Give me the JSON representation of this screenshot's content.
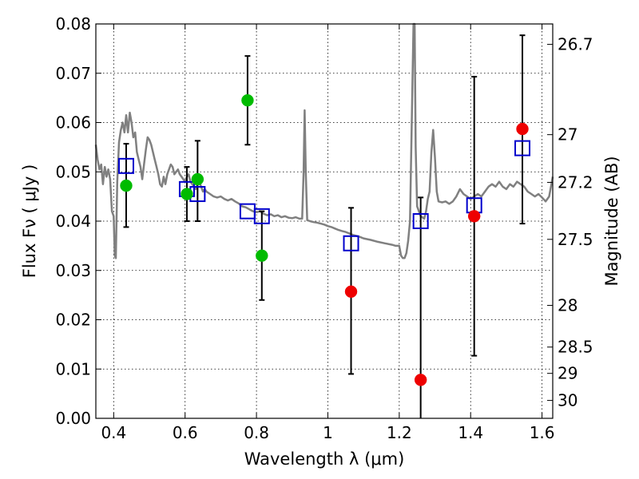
{
  "chart_data": {
    "type": "scatter",
    "xlabel": "Wavelength  λ (μm)",
    "ylabel": "Flux  Fν  ( μJy )",
    "ylabel_right": "Magnitude (AB)",
    "xlim": [
      0.35,
      1.63
    ],
    "ylim": [
      0.0,
      0.08
    ],
    "grid": true,
    "x_ticks": [
      0.4,
      0.6,
      0.8,
      1.0,
      1.2,
      1.4,
      1.6
    ],
    "x_tick_labels": [
      "0.4",
      "0.6",
      "0.8",
      "1",
      "1.2",
      "1.4",
      "1.6"
    ],
    "y_ticks": [
      0.0,
      0.01,
      0.02,
      0.03,
      0.04,
      0.05,
      0.06,
      0.07,
      0.08
    ],
    "y_tick_labels": [
      "0.00",
      "0.01",
      "0.02",
      "0.03",
      "0.04",
      "0.05",
      "0.06",
      "0.07",
      "0.08"
    ],
    "right_ticks": [
      {
        "mag": 26.7,
        "label": "26.7"
      },
      {
        "mag": 27.0,
        "label": "27"
      },
      {
        "mag": 27.2,
        "label": "27.2"
      },
      {
        "mag": 27.5,
        "label": "27.5"
      },
      {
        "mag": 28.0,
        "label": "28"
      },
      {
        "mag": 28.5,
        "label": "28.5"
      },
      {
        "mag": 29.0,
        "label": "29"
      },
      {
        "mag": 30.0,
        "label": "30"
      }
    ],
    "colors": {
      "model": "#808080",
      "model_points": "#0000cc",
      "detections": "#00bb00",
      "upper_limits": "#ee0000",
      "errorbars": "#000000"
    },
    "series": [
      {
        "kind": "line",
        "role": "model",
        "points": [
          [
            0.35,
            0.0555
          ],
          [
            0.355,
            0.0525
          ],
          [
            0.36,
            0.0505
          ],
          [
            0.365,
            0.0515
          ],
          [
            0.37,
            0.0475
          ],
          [
            0.375,
            0.051
          ],
          [
            0.38,
            0.049
          ],
          [
            0.385,
            0.0505
          ],
          [
            0.39,
            0.0485
          ],
          [
            0.395,
            0.042
          ],
          [
            0.4,
            0.041
          ],
          [
            0.403,
            0.033
          ],
          [
            0.406,
            0.0325
          ],
          [
            0.41,
            0.048
          ],
          [
            0.415,
            0.056
          ],
          [
            0.42,
            0.0585
          ],
          [
            0.425,
            0.06
          ],
          [
            0.43,
            0.058
          ],
          [
            0.435,
            0.0615
          ],
          [
            0.44,
            0.058
          ],
          [
            0.445,
            0.062
          ],
          [
            0.45,
            0.06
          ],
          [
            0.455,
            0.057
          ],
          [
            0.46,
            0.058
          ],
          [
            0.465,
            0.054
          ],
          [
            0.47,
            0.0525
          ],
          [
            0.475,
            0.051
          ],
          [
            0.48,
            0.0485
          ],
          [
            0.485,
            0.0515
          ],
          [
            0.49,
            0.0545
          ],
          [
            0.495,
            0.057
          ],
          [
            0.5,
            0.0565
          ],
          [
            0.505,
            0.0555
          ],
          [
            0.51,
            0.054
          ],
          [
            0.515,
            0.0525
          ],
          [
            0.52,
            0.051
          ],
          [
            0.525,
            0.0495
          ],
          [
            0.53,
            0.0475
          ],
          [
            0.535,
            0.047
          ],
          [
            0.54,
            0.049
          ],
          [
            0.545,
            0.0475
          ],
          [
            0.55,
            0.0495
          ],
          [
            0.555,
            0.0505
          ],
          [
            0.56,
            0.0515
          ],
          [
            0.565,
            0.051
          ],
          [
            0.57,
            0.0495
          ],
          [
            0.575,
            0.05
          ],
          [
            0.58,
            0.0505
          ],
          [
            0.585,
            0.0495
          ],
          [
            0.59,
            0.049
          ],
          [
            0.595,
            0.0485
          ],
          [
            0.6,
            0.048
          ],
          [
            0.605,
            0.049
          ],
          [
            0.61,
            0.0495
          ],
          [
            0.615,
            0.048
          ],
          [
            0.62,
            0.0475
          ],
          [
            0.625,
            0.047
          ],
          [
            0.63,
            0.0465
          ],
          [
            0.635,
            0.0475
          ],
          [
            0.64,
            0.048
          ],
          [
            0.645,
            0.047
          ],
          [
            0.65,
            0.046
          ],
          [
            0.655,
            0.0465
          ],
          [
            0.66,
            0.046
          ],
          [
            0.67,
            0.0455
          ],
          [
            0.68,
            0.045
          ],
          [
            0.69,
            0.0448
          ],
          [
            0.7,
            0.045
          ],
          [
            0.71,
            0.0445
          ],
          [
            0.72,
            0.0442
          ],
          [
            0.73,
            0.0445
          ],
          [
            0.74,
            0.044
          ],
          [
            0.75,
            0.0436
          ],
          [
            0.76,
            0.043
          ],
          [
            0.77,
            0.0428
          ],
          [
            0.78,
            0.0424
          ],
          [
            0.79,
            0.042
          ],
          [
            0.8,
            0.0418
          ],
          [
            0.81,
            0.042
          ],
          [
            0.82,
            0.0415
          ],
          [
            0.83,
            0.0412
          ],
          [
            0.84,
            0.0414
          ],
          [
            0.85,
            0.041
          ],
          [
            0.86,
            0.0412
          ],
          [
            0.87,
            0.0408
          ],
          [
            0.88,
            0.041
          ],
          [
            0.89,
            0.0407
          ],
          [
            0.9,
            0.0406
          ],
          [
            0.91,
            0.0408
          ],
          [
            0.92,
            0.0405
          ],
          [
            0.928,
            0.0405
          ],
          [
            0.932,
            0.05
          ],
          [
            0.935,
            0.0625
          ],
          [
            0.938,
            0.05
          ],
          [
            0.942,
            0.0402
          ],
          [
            0.95,
            0.04
          ],
          [
            0.96,
            0.0398
          ],
          [
            0.97,
            0.0397
          ],
          [
            0.98,
            0.0395
          ],
          [
            0.99,
            0.0393
          ],
          [
            1.0,
            0.039
          ],
          [
            1.01,
            0.0388
          ],
          [
            1.02,
            0.0385
          ],
          [
            1.03,
            0.0382
          ],
          [
            1.04,
            0.038
          ],
          [
            1.05,
            0.0378
          ],
          [
            1.06,
            0.0375
          ],
          [
            1.07,
            0.0372
          ],
          [
            1.08,
            0.037
          ],
          [
            1.09,
            0.0368
          ],
          [
            1.1,
            0.0365
          ],
          [
            1.12,
            0.0362
          ],
          [
            1.14,
            0.0358
          ],
          [
            1.16,
            0.0355
          ],
          [
            1.18,
            0.0352
          ],
          [
            1.19,
            0.035
          ],
          [
            1.2,
            0.035
          ],
          [
            1.205,
            0.033
          ],
          [
            1.21,
            0.0325
          ],
          [
            1.215,
            0.0325
          ],
          [
            1.22,
            0.0335
          ],
          [
            1.225,
            0.036
          ],
          [
            1.23,
            0.04
          ],
          [
            1.235,
            0.06
          ],
          [
            1.24,
            0.08
          ],
          [
            1.243,
            0.08
          ],
          [
            1.246,
            0.055
          ],
          [
            1.25,
            0.043
          ],
          [
            1.26,
            0.041
          ],
          [
            1.27,
            0.0405
          ],
          [
            1.275,
            0.042
          ],
          [
            1.28,
            0.0445
          ],
          [
            1.285,
            0.046
          ],
          [
            1.29,
            0.054
          ],
          [
            1.295,
            0.0585
          ],
          [
            1.3,
            0.053
          ],
          [
            1.305,
            0.046
          ],
          [
            1.31,
            0.044
          ],
          [
            1.32,
            0.0438
          ],
          [
            1.33,
            0.044
          ],
          [
            1.34,
            0.0435
          ],
          [
            1.35,
            0.044
          ],
          [
            1.36,
            0.045
          ],
          [
            1.37,
            0.0465
          ],
          [
            1.38,
            0.0455
          ],
          [
            1.39,
            0.045
          ],
          [
            1.4,
            0.0445
          ],
          [
            1.41,
            0.045
          ],
          [
            1.42,
            0.0455
          ],
          [
            1.43,
            0.045
          ],
          [
            1.44,
            0.046
          ],
          [
            1.45,
            0.047
          ],
          [
            1.46,
            0.0475
          ],
          [
            1.47,
            0.047
          ],
          [
            1.48,
            0.048
          ],
          [
            1.49,
            0.047
          ],
          [
            1.5,
            0.0465
          ],
          [
            1.51,
            0.0475
          ],
          [
            1.52,
            0.047
          ],
          [
            1.53,
            0.048
          ],
          [
            1.54,
            0.0475
          ],
          [
            1.55,
            0.047
          ],
          [
            1.56,
            0.046
          ],
          [
            1.57,
            0.0455
          ],
          [
            1.58,
            0.045
          ],
          [
            1.59,
            0.0455
          ],
          [
            1.6,
            0.0448
          ],
          [
            1.61,
            0.044
          ],
          [
            1.62,
            0.045
          ],
          [
            1.625,
            0.047
          ],
          [
            1.63,
            0.049
          ]
        ]
      },
      {
        "kind": "squares",
        "role": "model_points",
        "points": [
          [
            0.435,
            0.0512
          ],
          [
            0.605,
            0.0465
          ],
          [
            0.635,
            0.0455
          ],
          [
            0.775,
            0.042
          ],
          [
            0.815,
            0.041
          ],
          [
            1.065,
            0.0355
          ],
          [
            1.26,
            0.04
          ],
          [
            1.41,
            0.0432
          ],
          [
            1.545,
            0.0548
          ]
        ]
      },
      {
        "kind": "circles",
        "role": "detections",
        "points": [
          [
            0.435,
            0.0472
          ],
          [
            0.605,
            0.0455
          ],
          [
            0.635,
            0.0485
          ],
          [
            0.775,
            0.0645
          ],
          [
            0.815,
            0.033
          ]
        ]
      },
      {
        "kind": "circles",
        "role": "upper_limits",
        "points": [
          [
            1.065,
            0.0257
          ],
          [
            1.26,
            0.0078
          ],
          [
            1.41,
            0.041
          ],
          [
            1.545,
            0.0587
          ]
        ]
      },
      {
        "kind": "errorbars",
        "role": "errorbars",
        "points": [
          {
            "x": 0.435,
            "low": 0.0388,
            "high": 0.0557
          },
          {
            "x": 0.605,
            "low": 0.04,
            "high": 0.051
          },
          {
            "x": 0.635,
            "low": 0.04,
            "high": 0.0563
          },
          {
            "x": 0.775,
            "low": 0.0555,
            "high": 0.0735
          },
          {
            "x": 0.815,
            "low": 0.024,
            "high": 0.042
          },
          {
            "x": 1.065,
            "low": 0.009,
            "high": 0.0427
          },
          {
            "x": 1.26,
            "low": 0.0,
            "high": 0.0448
          },
          {
            "x": 1.41,
            "low": 0.0127,
            "high": 0.0693
          },
          {
            "x": 1.545,
            "low": 0.0395,
            "high": 0.0777
          }
        ]
      }
    ]
  }
}
